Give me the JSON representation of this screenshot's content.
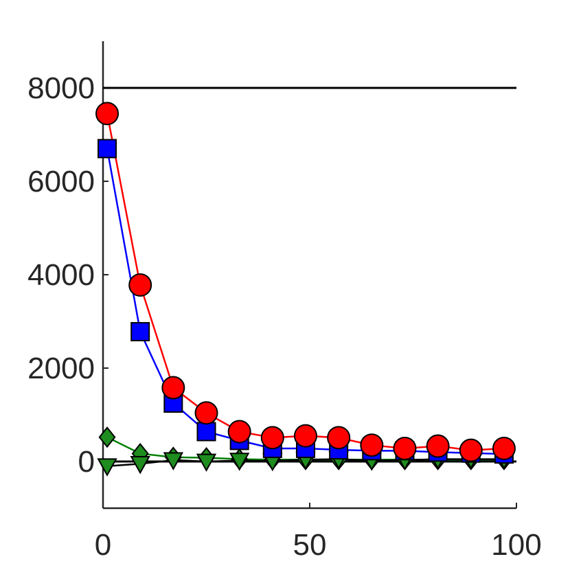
{
  "chart_data": {
    "type": "line",
    "title": "",
    "xlabel": "",
    "ylabel": "",
    "xlim": [
      0,
      100
    ],
    "ylim": [
      -1000,
      9000
    ],
    "x_ticks": [
      0,
      50,
      100
    ],
    "x_tick_labels": [
      "0",
      "50",
      "100"
    ],
    "y_ticks": [
      0,
      2000,
      4000,
      6000,
      8000
    ],
    "y_tick_labels": [
      "0",
      "2000",
      "4000",
      "6000",
      "8000"
    ],
    "grid": false,
    "reference_lines": [
      {
        "y": 8000,
        "color": "#000000"
      },
      {
        "y": 0,
        "color": "#000000"
      }
    ],
    "x": [
      1,
      9,
      17,
      25,
      33,
      41,
      49,
      57,
      65,
      73,
      81,
      89,
      97
    ],
    "series": [
      {
        "marker": "diamond",
        "color": "#008000",
        "fill": "#1e8c1e",
        "values": [
          520,
          170,
          90,
          80,
          50,
          40,
          40,
          40,
          40,
          40,
          40,
          40,
          40
        ]
      },
      {
        "marker": "triangle-down",
        "color": "#000000",
        "fill": "#1e8c1e",
        "values": [
          -100,
          -50,
          30,
          0,
          20,
          10,
          40,
          50,
          20,
          30,
          50,
          50,
          50
        ]
      },
      {
        "marker": "square",
        "color": "#0000ff",
        "fill": "#0000ff",
        "values": [
          6700,
          2780,
          1250,
          640,
          450,
          280,
          280,
          250,
          230,
          230,
          200,
          180,
          160
        ]
      },
      {
        "marker": "circle",
        "color": "#ff0000",
        "fill": "#ff0000",
        "values": [
          7450,
          3780,
          1580,
          1040,
          640,
          510,
          550,
          510,
          350,
          280,
          330,
          240,
          280
        ]
      }
    ]
  }
}
